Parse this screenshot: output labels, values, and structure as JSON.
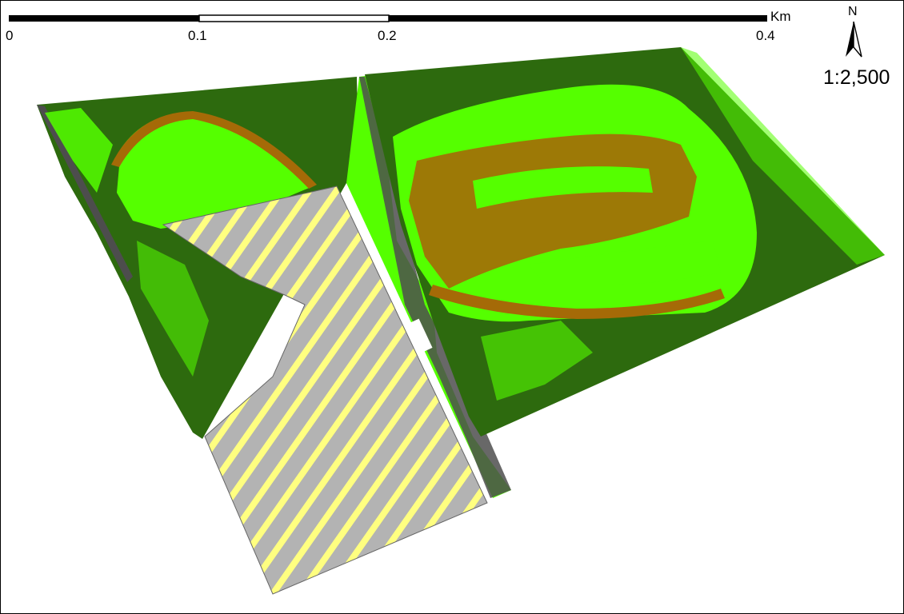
{
  "scale_bar": {
    "labels": [
      "0",
      "0.1",
      "0.2",
      "0.4"
    ],
    "unit": "Km"
  },
  "north_arrow": {
    "letter": "N",
    "icon": "north-arrow-icon"
  },
  "scale_ratio": "1:2,500",
  "legend_colors": {
    "grass": "#55ff00",
    "trees": "#2d6a0e",
    "bare_soil": "#a56a07",
    "pavement": "#4d4d4d",
    "built_area_gray": "#b3b3b3",
    "built_area_yellow": "#ffff80",
    "unclassified": "#ffffff"
  }
}
